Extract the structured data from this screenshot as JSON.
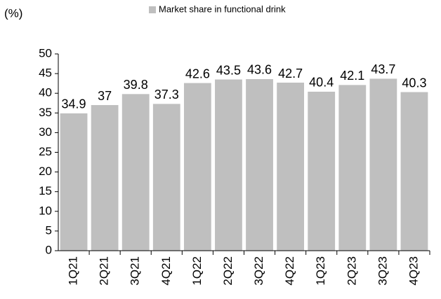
{
  "chart_data": {
    "type": "bar",
    "y_label": "(%)",
    "categories": [
      "1Q21",
      "2Q21",
      "3Q21",
      "4Q21",
      "1Q22",
      "2Q22",
      "3Q22",
      "4Q22",
      "1Q23",
      "2Q23",
      "3Q23",
      "4Q23"
    ],
    "series": [
      {
        "name": "Market share in functional drink",
        "color": "#bfbfbf",
        "values": [
          34.9,
          37,
          39.8,
          37.3,
          42.6,
          43.5,
          43.6,
          42.7,
          40.4,
          42.1,
          43.7,
          40.3
        ]
      }
    ],
    "ylim": [
      0,
      50
    ],
    "yticks": [
      0,
      5,
      10,
      15,
      20,
      25,
      30,
      35,
      40,
      45,
      50
    ],
    "grid": false,
    "legend": "top"
  }
}
